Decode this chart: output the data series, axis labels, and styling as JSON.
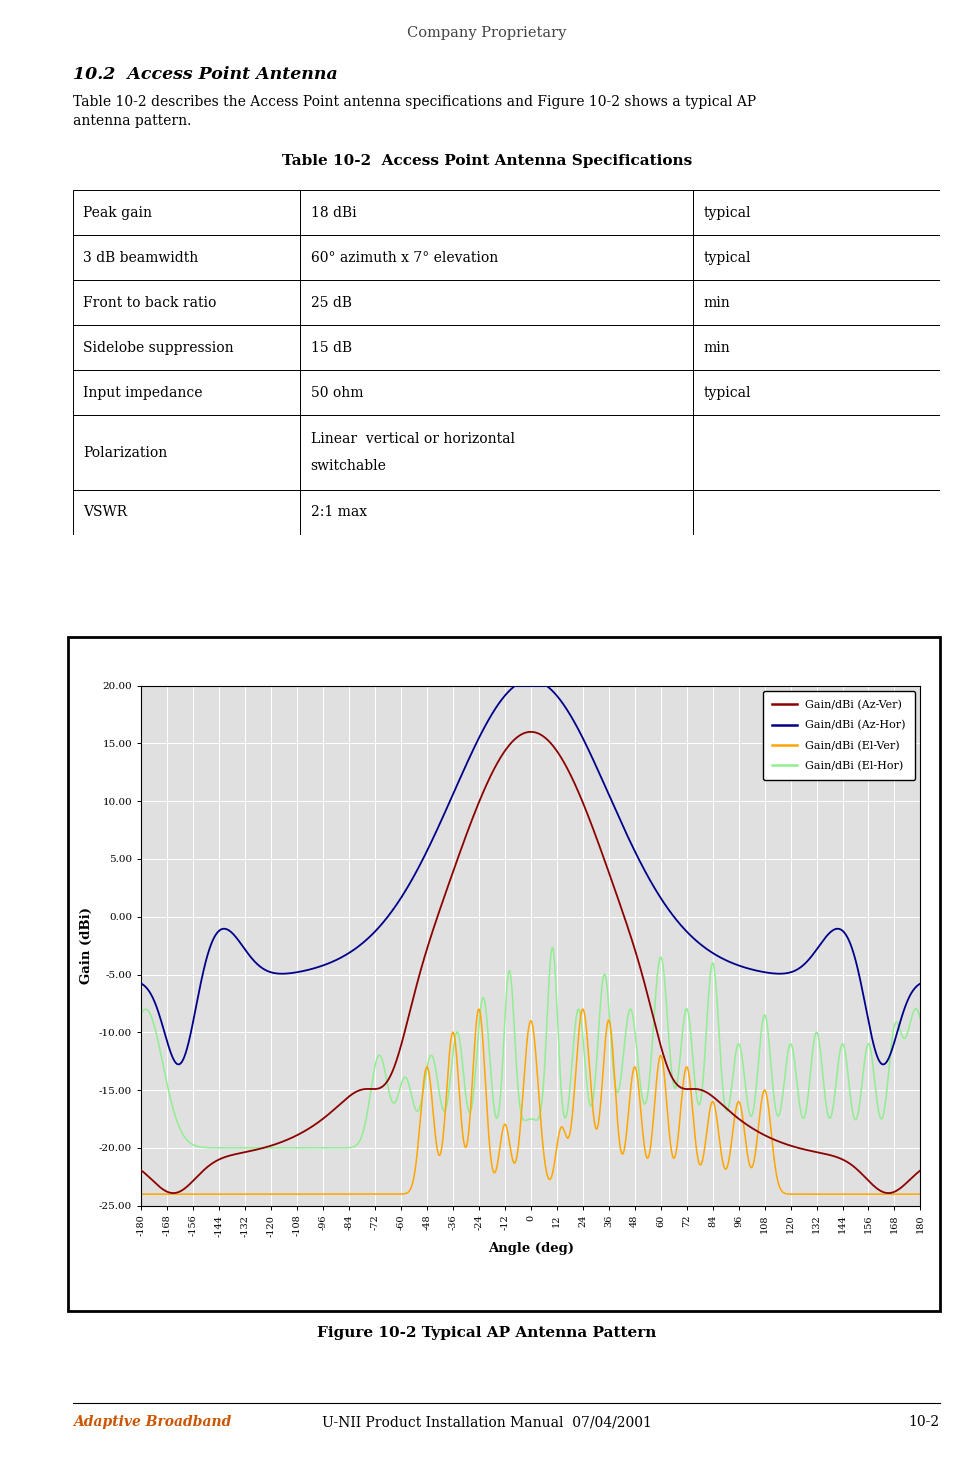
{
  "page_title": "Company Proprietary",
  "section_title": "10.2  Access Point Antenna",
  "section_body": "Table 10-2 describes the Access Point antenna specifications and Figure 10-2 shows a typical AP\nantenna pattern.",
  "table_title": "Table 10-2  Access Point Antenna Specifications",
  "table_rows": [
    [
      "Peak gain",
      "18 dBi",
      "typical"
    ],
    [
      "3 dB beamwidth",
      "60° azimuth x 7° elevation",
      "typical"
    ],
    [
      "Front to back ratio",
      "25 dB",
      "min"
    ],
    [
      "Sidelobe suppression",
      "15 dB",
      "min"
    ],
    [
      "Input impedance",
      "50 ohm",
      "typical"
    ],
    [
      "Polarization",
      "Linear  vertical or horizontal\nswitchable",
      ""
    ],
    [
      "VSWR",
      "2:1 max",
      ""
    ]
  ],
  "figure_caption": "Figure 10-2 Typical AP Antenna Pattern",
  "footer_left": "Adaptive Broadband",
  "footer_mid": "U-NII Product Installation Manual  07/04/2001",
  "footer_right": "10-2",
  "chart_xlabel": "Angle (deg)",
  "chart_ylabel": "Gain (dBi)",
  "chart_ylim": [
    -25.0,
    20.0
  ],
  "chart_yticks": [
    -25.0,
    -20.0,
    -15.0,
    -10.0,
    -5.0,
    0.0,
    5.0,
    10.0,
    15.0,
    20.0
  ],
  "chart_xticks": [
    -180,
    -168,
    -156,
    -144,
    -132,
    -120,
    -108,
    -96,
    -84,
    -72,
    -60,
    -48,
    -36,
    -24,
    -12,
    0,
    12,
    24,
    36,
    48,
    60,
    72,
    84,
    96,
    108,
    120,
    132,
    144,
    156,
    168,
    180
  ],
  "chart_bg_color": "#e0e0e0",
  "colors": {
    "az_ver": "#8B0000",
    "az_hor": "#00008B",
    "el_ver": "#FFA500",
    "el_hor": "#90EE90"
  },
  "legend_labels": [
    "Gain/dBi (Az-Ver)",
    "Gain/dBi (Az-Hor)",
    "Gain/dBi (El-Ver)",
    "Gain/dBi (El-Hor)"
  ]
}
